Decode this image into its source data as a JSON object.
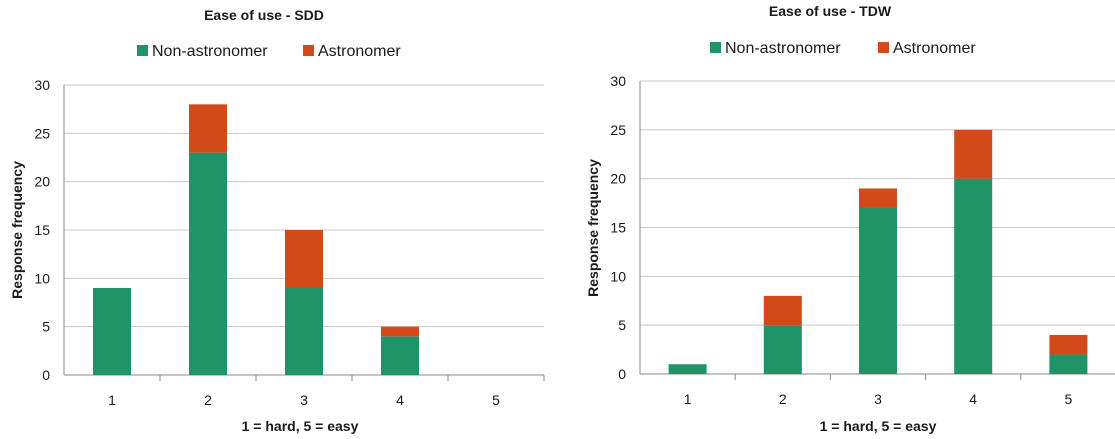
{
  "chart_data": [
    {
      "type": "bar",
      "stacked": true,
      "title": "Ease of use - SDD",
      "xlabel": "1 = hard, 5 = easy",
      "ylabel": "Response frequency",
      "categories": [
        "1",
        "2",
        "3",
        "4",
        "5"
      ],
      "ylim": [
        0,
        30
      ],
      "yticks": [
        0,
        5,
        10,
        15,
        20,
        25,
        30
      ],
      "grid": true,
      "legend_position": "top",
      "series": [
        {
          "name": "Non-astronomer",
          "color": "#1f9467",
          "values": [
            9,
            23,
            9,
            4,
            0
          ]
        },
        {
          "name": "Astronomer",
          "color": "#d2491a",
          "values": [
            0,
            5,
            6,
            1,
            0
          ]
        }
      ]
    },
    {
      "type": "bar",
      "stacked": true,
      "title": "Ease of use - TDW",
      "xlabel": "1 = hard, 5 = easy",
      "ylabel": "Response frequency",
      "categories": [
        "1",
        "2",
        "3",
        "4",
        "5"
      ],
      "ylim": [
        0,
        30
      ],
      "yticks": [
        0,
        5,
        10,
        15,
        20,
        25,
        30
      ],
      "grid": true,
      "legend_position": "top",
      "series": [
        {
          "name": "Non-astronomer",
          "color": "#1f9467",
          "values": [
            1,
            5,
            17,
            20,
            2
          ]
        },
        {
          "name": "Astronomer",
          "color": "#d2491a",
          "values": [
            0,
            3,
            2,
            5,
            2
          ]
        }
      ]
    }
  ]
}
